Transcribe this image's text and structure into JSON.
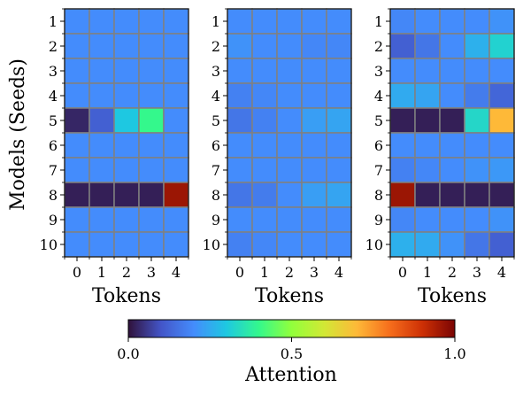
{
  "chart_data": {
    "type": "heatmap",
    "ylabel": "Models (Seeds)",
    "colorbar": {
      "label": "Attention",
      "colormap": "turbo",
      "range": [
        0,
        1
      ],
      "tick_values": [
        0.0,
        0.5,
        1.0
      ],
      "tick_labels": [
        "0.0",
        "0.5",
        "1.0"
      ],
      "orientation": "horizontal",
      "placement": "bottom"
    },
    "panels": [
      {
        "xlabel": "Tokens",
        "x_ticks": [
          "0",
          "1",
          "2",
          "3",
          "4"
        ],
        "y_ticks": [
          "1",
          "2",
          "3",
          "4",
          "5",
          "6",
          "7",
          "8",
          "9",
          "10"
        ],
        "values": [
          [
            0.2,
            0.2,
            0.2,
            0.2,
            0.2
          ],
          [
            0.2,
            0.2,
            0.2,
            0.2,
            0.2
          ],
          [
            0.2,
            0.2,
            0.2,
            0.2,
            0.2
          ],
          [
            0.2,
            0.2,
            0.2,
            0.2,
            0.2
          ],
          [
            0.03,
            0.12,
            0.3,
            0.4,
            0.2
          ],
          [
            0.2,
            0.2,
            0.2,
            0.2,
            0.2
          ],
          [
            0.2,
            0.2,
            0.2,
            0.2,
            0.2
          ],
          [
            0.02,
            0.02,
            0.02,
            0.02,
            0.96
          ],
          [
            0.2,
            0.2,
            0.2,
            0.2,
            0.2
          ],
          [
            0.2,
            0.2,
            0.2,
            0.2,
            0.2
          ]
        ]
      },
      {
        "xlabel": "Tokens",
        "x_ticks": [
          "0",
          "1",
          "2",
          "3",
          "4"
        ],
        "y_ticks": [
          "1",
          "2",
          "3",
          "4",
          "5",
          "6",
          "7",
          "8",
          "9",
          "10"
        ],
        "values": [
          [
            0.2,
            0.2,
            0.2,
            0.2,
            0.2
          ],
          [
            0.21,
            0.2,
            0.2,
            0.19,
            0.19
          ],
          [
            0.2,
            0.2,
            0.2,
            0.2,
            0.2
          ],
          [
            0.18,
            0.19,
            0.2,
            0.2,
            0.2
          ],
          [
            0.16,
            0.18,
            0.2,
            0.23,
            0.24
          ],
          [
            0.2,
            0.2,
            0.2,
            0.2,
            0.2
          ],
          [
            0.2,
            0.2,
            0.2,
            0.2,
            0.2
          ],
          [
            0.16,
            0.17,
            0.2,
            0.23,
            0.24
          ],
          [
            0.2,
            0.2,
            0.2,
            0.2,
            0.2
          ],
          [
            0.18,
            0.19,
            0.2,
            0.2,
            0.2
          ]
        ]
      },
      {
        "xlabel": "Tokens",
        "x_ticks": [
          "0",
          "1",
          "2",
          "3",
          "4"
        ],
        "y_ticks": [
          "1",
          "2",
          "3",
          "4",
          "5",
          "6",
          "7",
          "8",
          "9",
          "10"
        ],
        "values": [
          [
            0.19,
            0.2,
            0.2,
            0.2,
            0.21
          ],
          [
            0.12,
            0.16,
            0.2,
            0.26,
            0.32
          ],
          [
            0.2,
            0.2,
            0.2,
            0.2,
            0.2
          ],
          [
            0.25,
            0.24,
            0.2,
            0.17,
            0.13
          ],
          [
            0.02,
            0.02,
            0.02,
            0.33,
            0.7
          ],
          [
            0.2,
            0.2,
            0.2,
            0.2,
            0.2
          ],
          [
            0.18,
            0.19,
            0.2,
            0.21,
            0.22
          ],
          [
            0.96,
            0.02,
            0.02,
            0.02,
            0.02
          ],
          [
            0.19,
            0.2,
            0.2,
            0.2,
            0.21
          ],
          [
            0.26,
            0.25,
            0.21,
            0.16,
            0.12
          ]
        ]
      }
    ]
  }
}
